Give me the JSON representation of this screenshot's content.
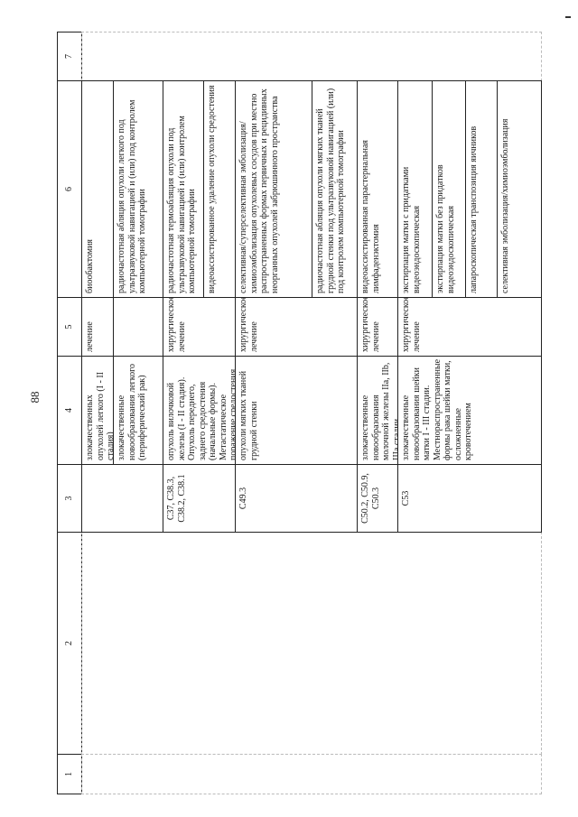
{
  "page_number": "88",
  "header": [
    "1",
    "2",
    "3",
    "4",
    "5",
    "6",
    "7"
  ],
  "rows": {
    "r1": {
      "diagnosis": "злокачественных опухолей легкого (I - II стадия)",
      "treatment_type": "лечение",
      "methods": [
        "биообактомия"
      ]
    },
    "r2": {
      "diagnosis": "злокачественные новообразования легкого (периферический рак)",
      "methods": [
        "радиочастотная абляция опухоли легкого под ультразвуковой навигацией и (или) под контролем компьютерной томографии"
      ]
    },
    "r3": {
      "codes": "C37, C38.3, C38.2, C38.1",
      "diagnosis": "опухоль вилочковой железы (I - II стадия). Опухоль переднего, заднего средостения (начальные формы). Метастатическое поражение средостения",
      "treatment_type": "хирургическое лечение",
      "methods": [
        "радиочастотная термоабляция опухоли под ультразвуковой навигацией и (или) контролем компьютерной томографии",
        "видеоассистированное удаление опухоли средостения"
      ]
    },
    "r4": {
      "codes": "C49.3",
      "diagnosis": "опухоли мягких тканей грудной стенки",
      "treatment_type": "хирургическое лечение",
      "methods": [
        "селективная/суперселективная эмболизация/химиоэмболизация опухолевых сосудов при местно распространенных формах первичных и рецидивных неорганных опухолей забрюшинного пространства",
        "радиочастотная абляция опухоли мягких тканей грудной стенки под ультразвуковой навигацией (или) под контролем компьютерной томографии"
      ]
    },
    "r5": {
      "codes": "C50.2, C50.9, C50.3",
      "diagnosis": "злокачественные новообразования молочной железы IIa, IIb, IIIa стадии",
      "treatment_type": "хирургическое лечение",
      "methods": [
        "видеоассистированная парастернальная лимфаденэктомия"
      ]
    },
    "r6": {
      "codes": "C53",
      "diagnosis": "злокачественные новообразования шейки матки I - III стадии. Местнораспространенные формы рака шейки матки, осложненные кровотечением",
      "treatment_type": "хирургическое лечение",
      "methods": [
        "экстирпация матки с придатками видеоэндоскопическая",
        "экстирпация матки без придатков видеоэндоскопическая",
        "лапароскопическая транспозиция яичников",
        "селективная эмболизация/химиоэмболизация"
      ]
    }
  }
}
